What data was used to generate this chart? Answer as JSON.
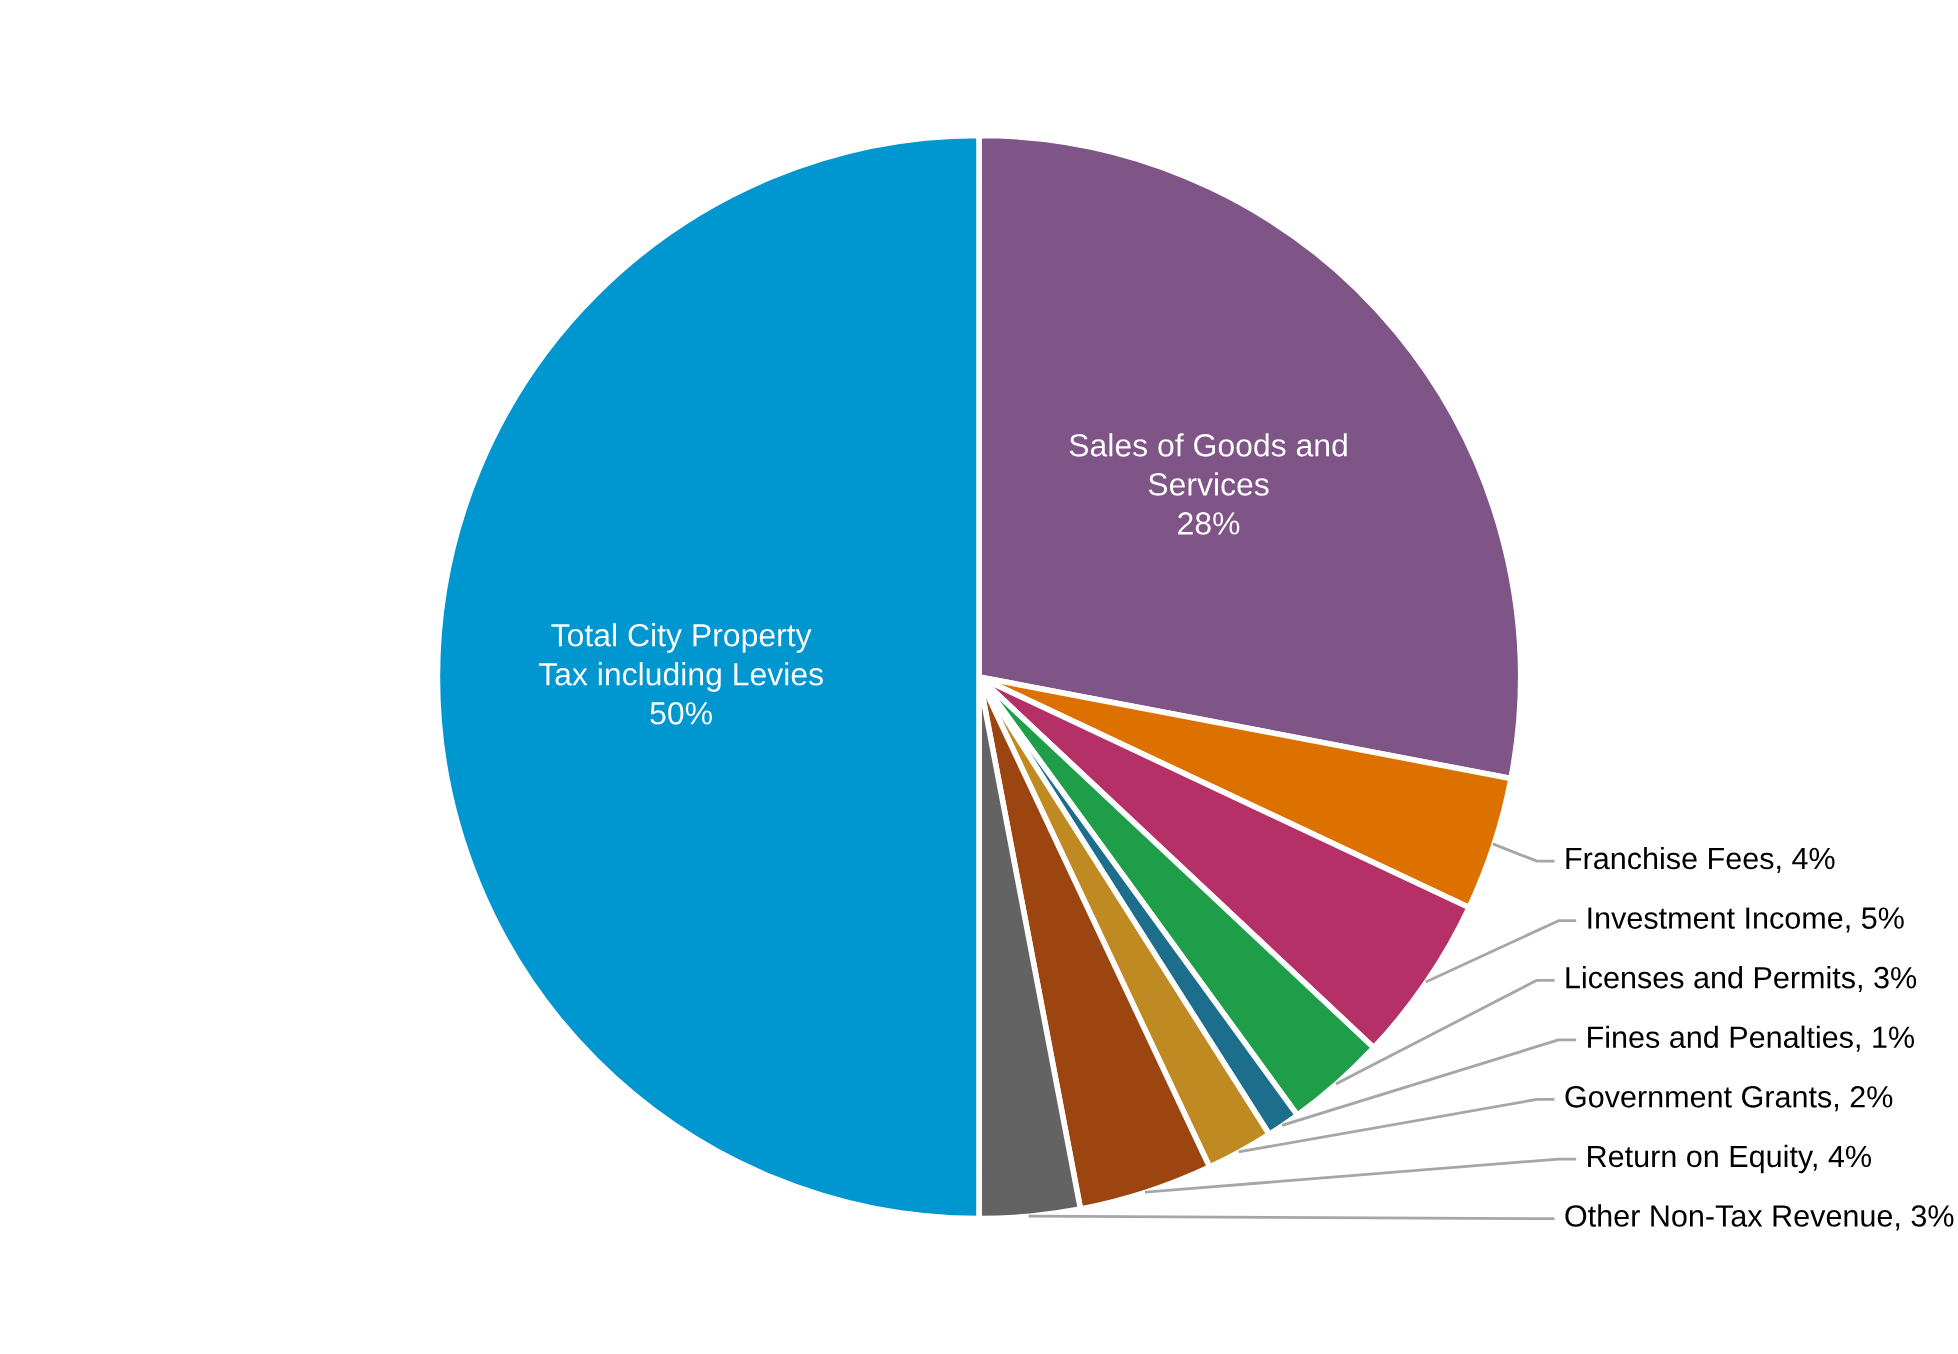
{
  "chart_data": {
    "type": "pie",
    "categories": [
      "Sales of Goods and Services",
      "Franchise Fees",
      "Investment Income",
      "Licenses and Permits",
      "Fines and Penalties",
      "Government Grants",
      "Return on Equity",
      "Other Non-Tax Revenue",
      "Total City Property Tax including Levies"
    ],
    "values": [
      28,
      4,
      5,
      3,
      1,
      2,
      4,
      3,
      50
    ],
    "value_labels": [
      "28%",
      "4%",
      "5%",
      "3%",
      "1%",
      "2%",
      "4%",
      "3%",
      "50%"
    ],
    "colors": [
      "#7f5587",
      "#dd7100",
      "#b53066",
      "#1f9e4a",
      "#1c6e8c",
      "#c08a22",
      "#9c4510",
      "#636363",
      "#0096d0"
    ],
    "legend": false
  }
}
